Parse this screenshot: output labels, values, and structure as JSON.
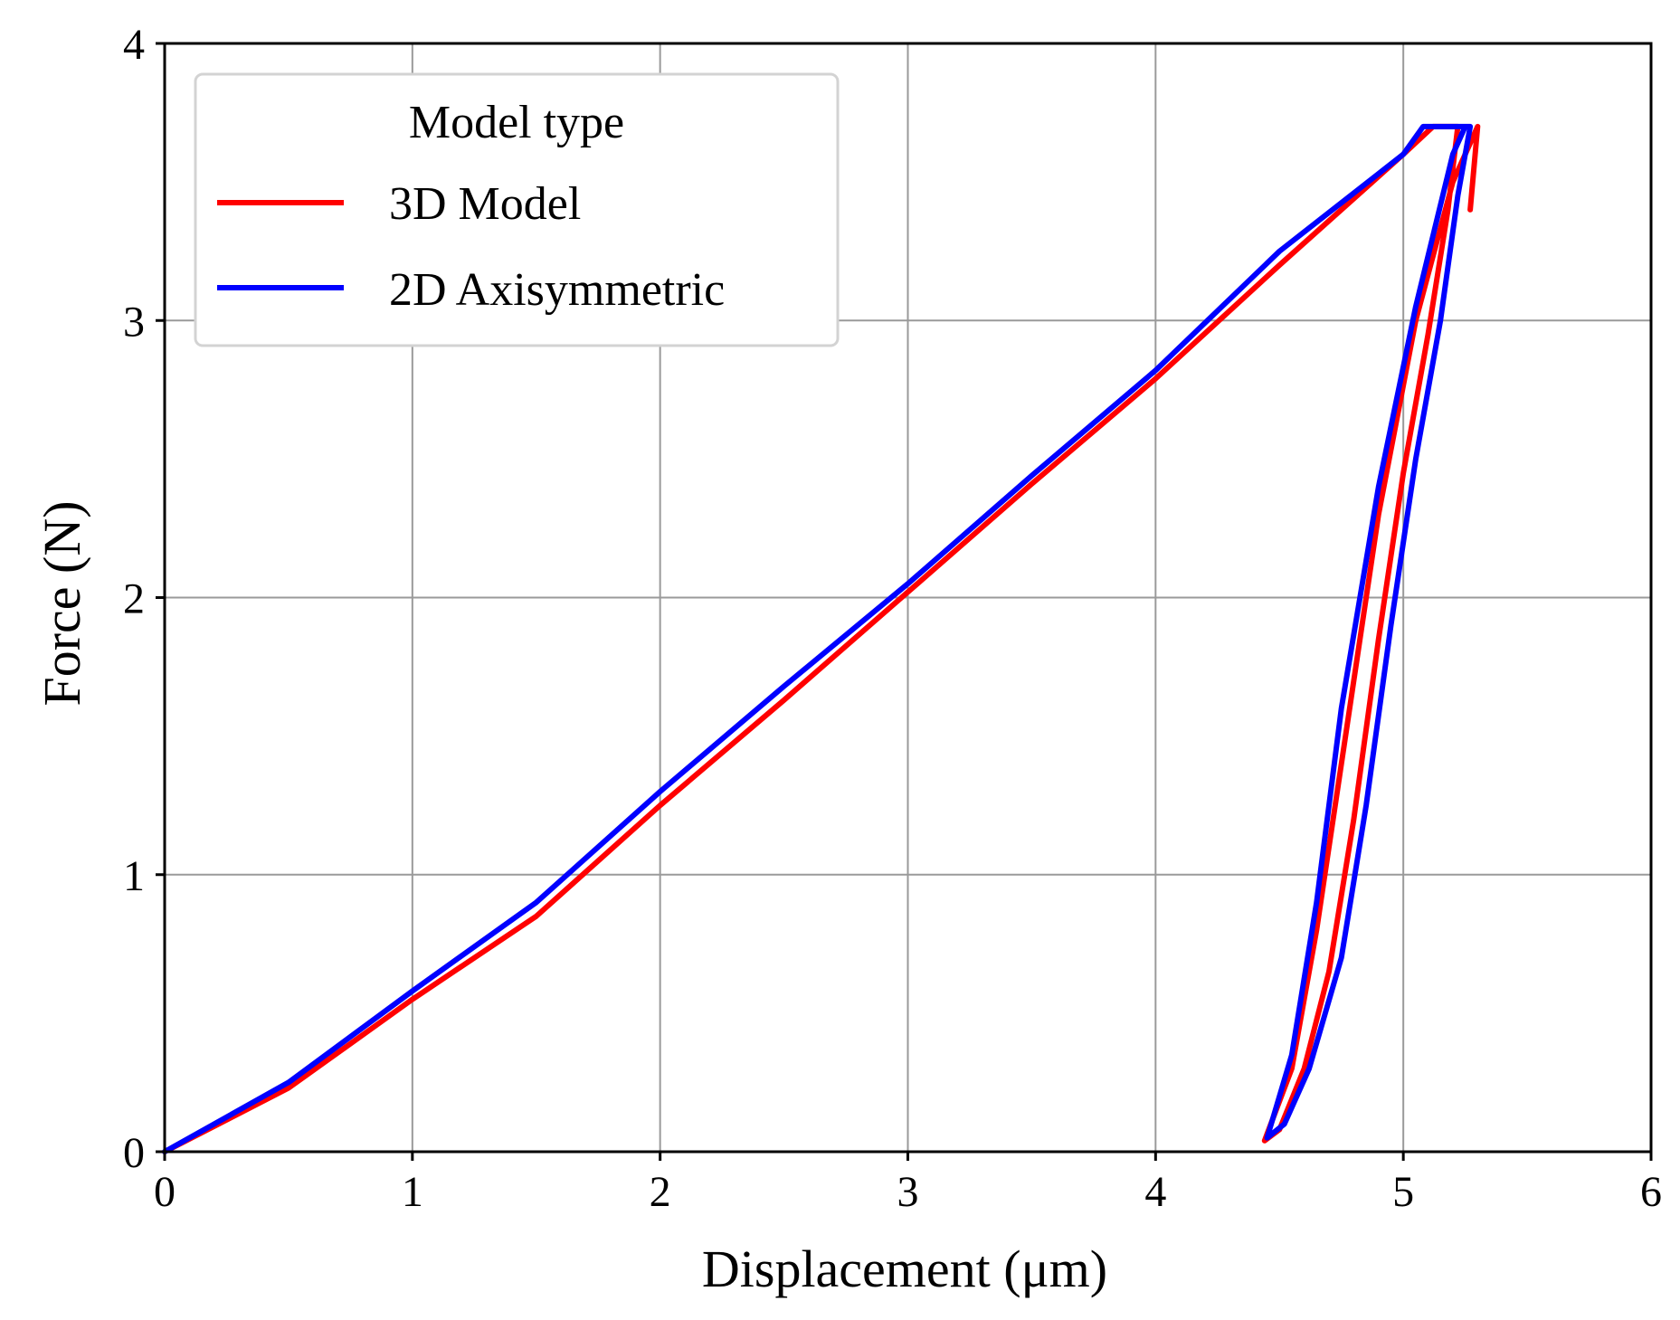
{
  "chart_data": {
    "type": "line",
    "xlabel": "Displacement (μm)",
    "ylabel": "Force  (N)",
    "xlim": [
      0,
      6
    ],
    "ylim": [
      0,
      4
    ],
    "x_ticks": [
      "0",
      "1",
      "2",
      "3",
      "4",
      "5",
      "6"
    ],
    "y_ticks": [
      "0",
      "1",
      "2",
      "3",
      "4"
    ],
    "grid": true,
    "legend": {
      "title": "Model type",
      "placement": "top-left"
    },
    "series": [
      {
        "name": "3D Model",
        "color": "#ff0000",
        "points": [
          [
            0,
            0
          ],
          [
            0.5,
            0.23
          ],
          [
            1,
            0.55
          ],
          [
            1.5,
            0.85
          ],
          [
            2,
            1.25
          ],
          [
            2.5,
            1.63
          ],
          [
            3,
            2.02
          ],
          [
            3.5,
            2.41
          ],
          [
            4,
            2.79
          ],
          [
            4.5,
            3.2
          ],
          [
            5,
            3.6
          ],
          [
            5.12,
            3.7
          ],
          [
            5.22,
            3.7
          ],
          [
            5.18,
            3.4
          ],
          [
            5.1,
            2.95
          ],
          [
            5.0,
            2.45
          ],
          [
            4.9,
            1.85
          ],
          [
            4.8,
            1.2
          ],
          [
            4.7,
            0.65
          ],
          [
            4.6,
            0.3
          ],
          [
            4.5,
            0.08
          ],
          [
            4.44,
            0.04
          ],
          [
            4.55,
            0.3
          ],
          [
            4.65,
            0.8
          ],
          [
            4.75,
            1.4
          ],
          [
            4.9,
            2.3
          ],
          [
            5.05,
            3.0
          ],
          [
            5.2,
            3.5
          ],
          [
            5.3,
            3.7
          ],
          [
            5.27,
            3.4
          ]
        ]
      },
      {
        "name": "2D Axisymmetric",
        "color": "#0000ff",
        "points": [
          [
            0,
            0
          ],
          [
            0.5,
            0.25
          ],
          [
            1,
            0.58
          ],
          [
            1.5,
            0.9
          ],
          [
            2,
            1.3
          ],
          [
            2.5,
            1.68
          ],
          [
            3,
            2.05
          ],
          [
            3.5,
            2.44
          ],
          [
            4,
            2.82
          ],
          [
            4.5,
            3.25
          ],
          [
            5,
            3.6
          ],
          [
            5.08,
            3.7
          ],
          [
            5.27,
            3.7
          ],
          [
            5.22,
            3.45
          ],
          [
            5.15,
            3.0
          ],
          [
            5.05,
            2.5
          ],
          [
            4.95,
            1.9
          ],
          [
            4.85,
            1.25
          ],
          [
            4.75,
            0.7
          ],
          [
            4.62,
            0.3
          ],
          [
            4.52,
            0.1
          ],
          [
            4.45,
            0.05
          ],
          [
            4.55,
            0.35
          ],
          [
            4.65,
            0.9
          ],
          [
            4.75,
            1.6
          ],
          [
            4.9,
            2.4
          ],
          [
            5.05,
            3.05
          ],
          [
            5.2,
            3.6
          ],
          [
            5.25,
            3.7
          ]
        ]
      }
    ]
  }
}
